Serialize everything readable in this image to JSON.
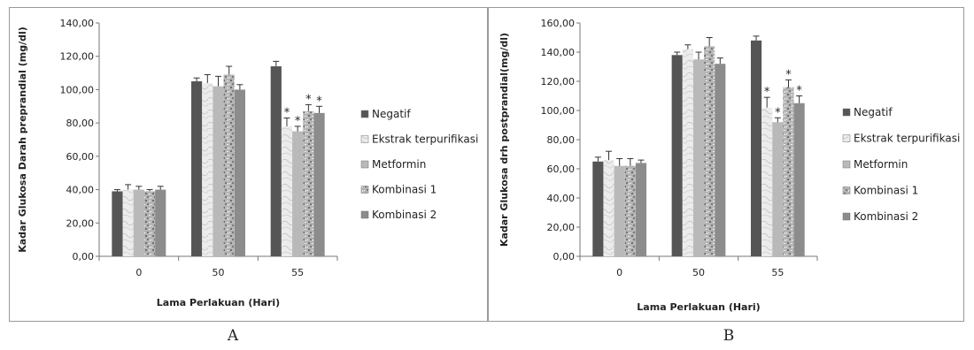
{
  "charts": [
    {
      "caption": "A",
      "chart_data": {
        "type": "bar",
        "title": "",
        "xlabel": "Lama Perlakuan (Hari)",
        "ylabel": "Kadar Glukosa Darah preprandial (mg/dl)",
        "ylim": [
          0,
          140
        ],
        "ytick_step": 20,
        "ytick_labels": [
          "0,00",
          "20,00",
          "40,00",
          "60,00",
          "80,00",
          "100,00",
          "120,00",
          "140,00"
        ],
        "categories": [
          "0",
          "50",
          "55"
        ],
        "grid": false,
        "legend_position": "right",
        "series": [
          {
            "name": "Negatif",
            "values": [
              39,
              105,
              114
            ],
            "errors": [
              1,
              2,
              3
            ],
            "stars": [
              false,
              false,
              false
            ]
          },
          {
            "name": "Ekstrak terpurifikasi",
            "values": [
              40,
              104,
              78
            ],
            "errors": [
              3,
              5,
              5
            ],
            "stars": [
              false,
              false,
              true
            ]
          },
          {
            "name": "Metformin",
            "values": [
              40,
              102,
              75
            ],
            "errors": [
              2,
              6,
              3
            ],
            "stars": [
              false,
              false,
              true
            ]
          },
          {
            "name": "Kombinasi 1",
            "values": [
              39,
              109,
              87
            ],
            "errors": [
              1,
              5,
              4
            ],
            "stars": [
              false,
              false,
              true
            ]
          },
          {
            "name": "Kombinasi 2",
            "values": [
              40,
              100,
              86
            ],
            "errors": [
              2,
              3,
              4
            ],
            "stars": [
              false,
              false,
              true
            ]
          }
        ]
      }
    },
    {
      "caption": "B",
      "chart_data": {
        "type": "bar",
        "title": "",
        "xlabel": "Lama Perlakuan (Hari)",
        "ylabel": "Kadar Glukosa drh postprandial(mg/dl)",
        "ylim": [
          0,
          160
        ],
        "ytick_step": 20,
        "ytick_labels": [
          "0,00",
          "20,00",
          "40,00",
          "60,00",
          "80,00",
          "100,00",
          "120,00",
          "140,00",
          "160,00"
        ],
        "categories": [
          "0",
          "50",
          "55"
        ],
        "grid": false,
        "legend_position": "right",
        "series": [
          {
            "name": "Negatif",
            "values": [
              65,
              138,
              148
            ],
            "errors": [
              3,
              2,
              3
            ],
            "stars": [
              false,
              false,
              false
            ]
          },
          {
            "name": "Ekstrak terpurifikasi",
            "values": [
              66,
              142,
              102
            ],
            "errors": [
              6,
              3,
              7
            ],
            "stars": [
              false,
              false,
              true
            ]
          },
          {
            "name": "Metformin",
            "values": [
              62,
              135,
              92
            ],
            "errors": [
              5,
              5,
              3
            ],
            "stars": [
              false,
              false,
              true
            ]
          },
          {
            "name": "Kombinasi 1",
            "values": [
              62,
              144,
              116
            ],
            "errors": [
              5,
              6,
              5
            ],
            "stars": [
              false,
              false,
              true
            ]
          },
          {
            "name": "Kombinasi 2",
            "values": [
              64,
              132,
              105
            ],
            "errors": [
              2,
              4,
              5
            ],
            "stars": [
              false,
              false,
              true
            ]
          }
        ]
      }
    }
  ],
  "series_styles": [
    {
      "fill": "#555555",
      "pattern": "solid"
    },
    {
      "fill": "#ececec",
      "pattern": "marble"
    },
    {
      "fill": "#b9b9b9",
      "pattern": "solid"
    },
    {
      "fill": "#a9a9a9",
      "pattern": "granite"
    },
    {
      "fill": "#8c8c8c",
      "pattern": "solid"
    }
  ],
  "star_symbol": "*"
}
